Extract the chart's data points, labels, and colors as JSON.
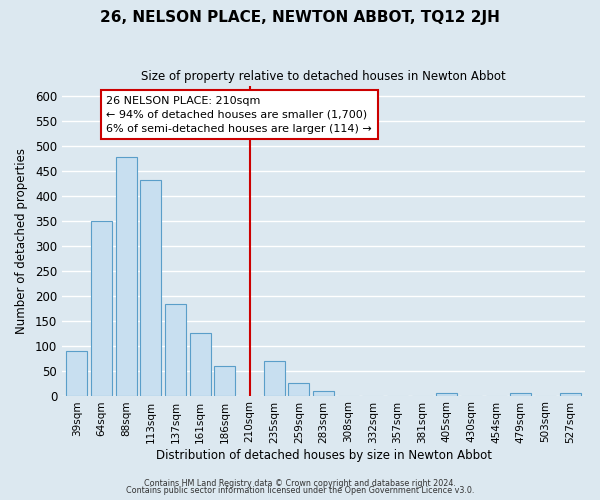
{
  "title": "26, NELSON PLACE, NEWTON ABBOT, TQ12 2JH",
  "subtitle": "Size of property relative to detached houses in Newton Abbot",
  "xlabel": "Distribution of detached houses by size in Newton Abbot",
  "ylabel": "Number of detached properties",
  "bar_labels": [
    "39sqm",
    "64sqm",
    "88sqm",
    "113sqm",
    "137sqm",
    "161sqm",
    "186sqm",
    "210sqm",
    "235sqm",
    "259sqm",
    "283sqm",
    "308sqm",
    "332sqm",
    "357sqm",
    "381sqm",
    "405sqm",
    "430sqm",
    "454sqm",
    "479sqm",
    "503sqm",
    "527sqm"
  ],
  "bar_heights": [
    90,
    350,
    478,
    432,
    183,
    125,
    60,
    0,
    70,
    25,
    10,
    0,
    0,
    0,
    0,
    5,
    0,
    0,
    5,
    0,
    5
  ],
  "vline_index": 7,
  "bar_color": "#c8dff0",
  "bar_edge_color": "#5a9ec9",
  "vline_color": "#cc0000",
  "ylim": [
    0,
    620
  ],
  "yticks": [
    0,
    50,
    100,
    150,
    200,
    250,
    300,
    350,
    400,
    450,
    500,
    550,
    600
  ],
  "annotation_title": "26 NELSON PLACE: 210sqm",
  "annotation_line1": "← 94% of detached houses are smaller (1,700)",
  "annotation_line2": "6% of semi-detached houses are larger (114) →",
  "annotation_box_color": "#ffffff",
  "annotation_box_edge": "#cc0000",
  "footer1": "Contains HM Land Registry data © Crown copyright and database right 2024.",
  "footer2": "Contains public sector information licensed under the Open Government Licence v3.0.",
  "bg_color": "#dce8f0",
  "grid_color": "#ffffff"
}
